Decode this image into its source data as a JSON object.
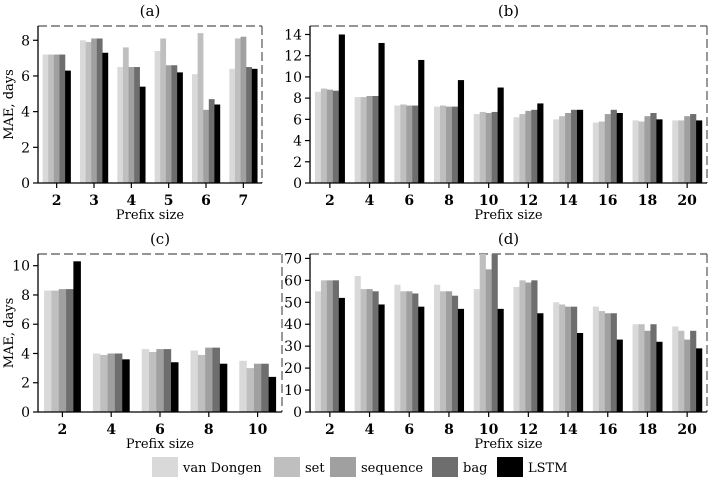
{
  "legend": {
    "series_names": [
      "van Dongen",
      "set",
      "sequence",
      "bag",
      "LSTM"
    ],
    "series_colors": [
      "#d9d9d9",
      "#bfbfbf",
      "#a0a0a0",
      "#6e6e6e",
      "#000000"
    ]
  },
  "chart_data": [
    {
      "type": "bar",
      "title": "(a)",
      "xlabel": "Prefix size",
      "ylabel": "MAE, days",
      "ylim": [
        0,
        8.8
      ],
      "yticks": [
        0,
        2,
        4,
        6,
        8
      ],
      "categories": [
        "2",
        "3",
        "4",
        "5",
        "6",
        "7"
      ],
      "series": [
        {
          "name": "van Dongen",
          "values": [
            7.2,
            8.0,
            6.5,
            7.4,
            6.1,
            6.4
          ]
        },
        {
          "name": "set",
          "values": [
            7.2,
            7.9,
            7.6,
            8.1,
            8.4,
            8.1
          ]
        },
        {
          "name": "sequence",
          "values": [
            7.2,
            8.1,
            6.5,
            6.6,
            4.1,
            8.2
          ]
        },
        {
          "name": "bag",
          "values": [
            7.2,
            8.1,
            6.5,
            6.6,
            4.7,
            6.5
          ]
        },
        {
          "name": "LSTM",
          "values": [
            6.3,
            7.3,
            5.4,
            6.2,
            4.4,
            6.4
          ]
        }
      ]
    },
    {
      "type": "bar",
      "title": "(b)",
      "xlabel": "Prefix size",
      "ylabel": "",
      "ylim": [
        0,
        14.8
      ],
      "yticks": [
        0,
        2,
        4,
        6,
        8,
        10,
        12,
        14
      ],
      "categories": [
        "2",
        "4",
        "6",
        "8",
        "10",
        "12",
        "14",
        "16",
        "18",
        "20"
      ],
      "series": [
        {
          "name": "van Dongen",
          "values": [
            8.6,
            8.1,
            7.3,
            7.2,
            6.5,
            6.2,
            6.0,
            5.7,
            5.9,
            5.9
          ]
        },
        {
          "name": "set",
          "values": [
            8.9,
            8.1,
            7.4,
            7.3,
            6.7,
            6.5,
            6.3,
            5.8,
            5.8,
            5.9
          ]
        },
        {
          "name": "sequence",
          "values": [
            8.8,
            8.2,
            7.3,
            7.2,
            6.6,
            6.8,
            6.6,
            6.5,
            6.3,
            6.3
          ]
        },
        {
          "name": "bag",
          "values": [
            8.7,
            8.2,
            7.3,
            7.2,
            6.7,
            6.9,
            6.9,
            6.9,
            6.6,
            6.5
          ]
        },
        {
          "name": "LSTM",
          "values": [
            14.0,
            13.2,
            11.6,
            9.7,
            9.0,
            7.5,
            6.9,
            6.6,
            6.0,
            5.9
          ]
        }
      ]
    },
    {
      "type": "bar",
      "title": "(c)",
      "xlabel": "Prefix size",
      "ylabel": "MAE, days",
      "ylim": [
        0,
        10.8
      ],
      "yticks": [
        0,
        2,
        4,
        6,
        8,
        10
      ],
      "categories": [
        "2",
        "4",
        "6",
        "8",
        "10"
      ],
      "series": [
        {
          "name": "van Dongen",
          "values": [
            8.3,
            4.0,
            4.3,
            4.2,
            3.5
          ]
        },
        {
          "name": "set",
          "values": [
            8.3,
            3.9,
            4.1,
            3.9,
            3.0
          ]
        },
        {
          "name": "sequence",
          "values": [
            8.4,
            4.0,
            4.3,
            4.4,
            3.3
          ]
        },
        {
          "name": "bag",
          "values": [
            8.4,
            4.0,
            4.3,
            4.4,
            3.3
          ]
        },
        {
          "name": "LSTM",
          "values": [
            10.3,
            3.6,
            3.4,
            3.3,
            2.4
          ]
        }
      ]
    },
    {
      "type": "bar",
      "title": "(d)",
      "xlabel": "Prefix size",
      "ylabel": "",
      "ylim": [
        0,
        72
      ],
      "yticks": [
        0,
        10,
        20,
        30,
        40,
        50,
        60,
        70
      ],
      "categories": [
        "2",
        "4",
        "6",
        "8",
        "10",
        "12",
        "14",
        "16",
        "18",
        "20"
      ],
      "series": [
        {
          "name": "van Dongen",
          "values": [
            55,
            62,
            58,
            58,
            56,
            57,
            50,
            48,
            40,
            39
          ]
        },
        {
          "name": "set",
          "values": [
            60,
            56,
            55,
            55,
            72,
            60,
            49,
            46,
            40,
            37
          ]
        },
        {
          "name": "sequence",
          "values": [
            60,
            56,
            55,
            55,
            65,
            59,
            48,
            45,
            37,
            33
          ]
        },
        {
          "name": "bag",
          "values": [
            60,
            55,
            54,
            53,
            72,
            60,
            48,
            45,
            40,
            37
          ]
        },
        {
          "name": "LSTM",
          "values": [
            52,
            49,
            48,
            47,
            47,
            45,
            36,
            33,
            32,
            29
          ]
        }
      ]
    }
  ]
}
